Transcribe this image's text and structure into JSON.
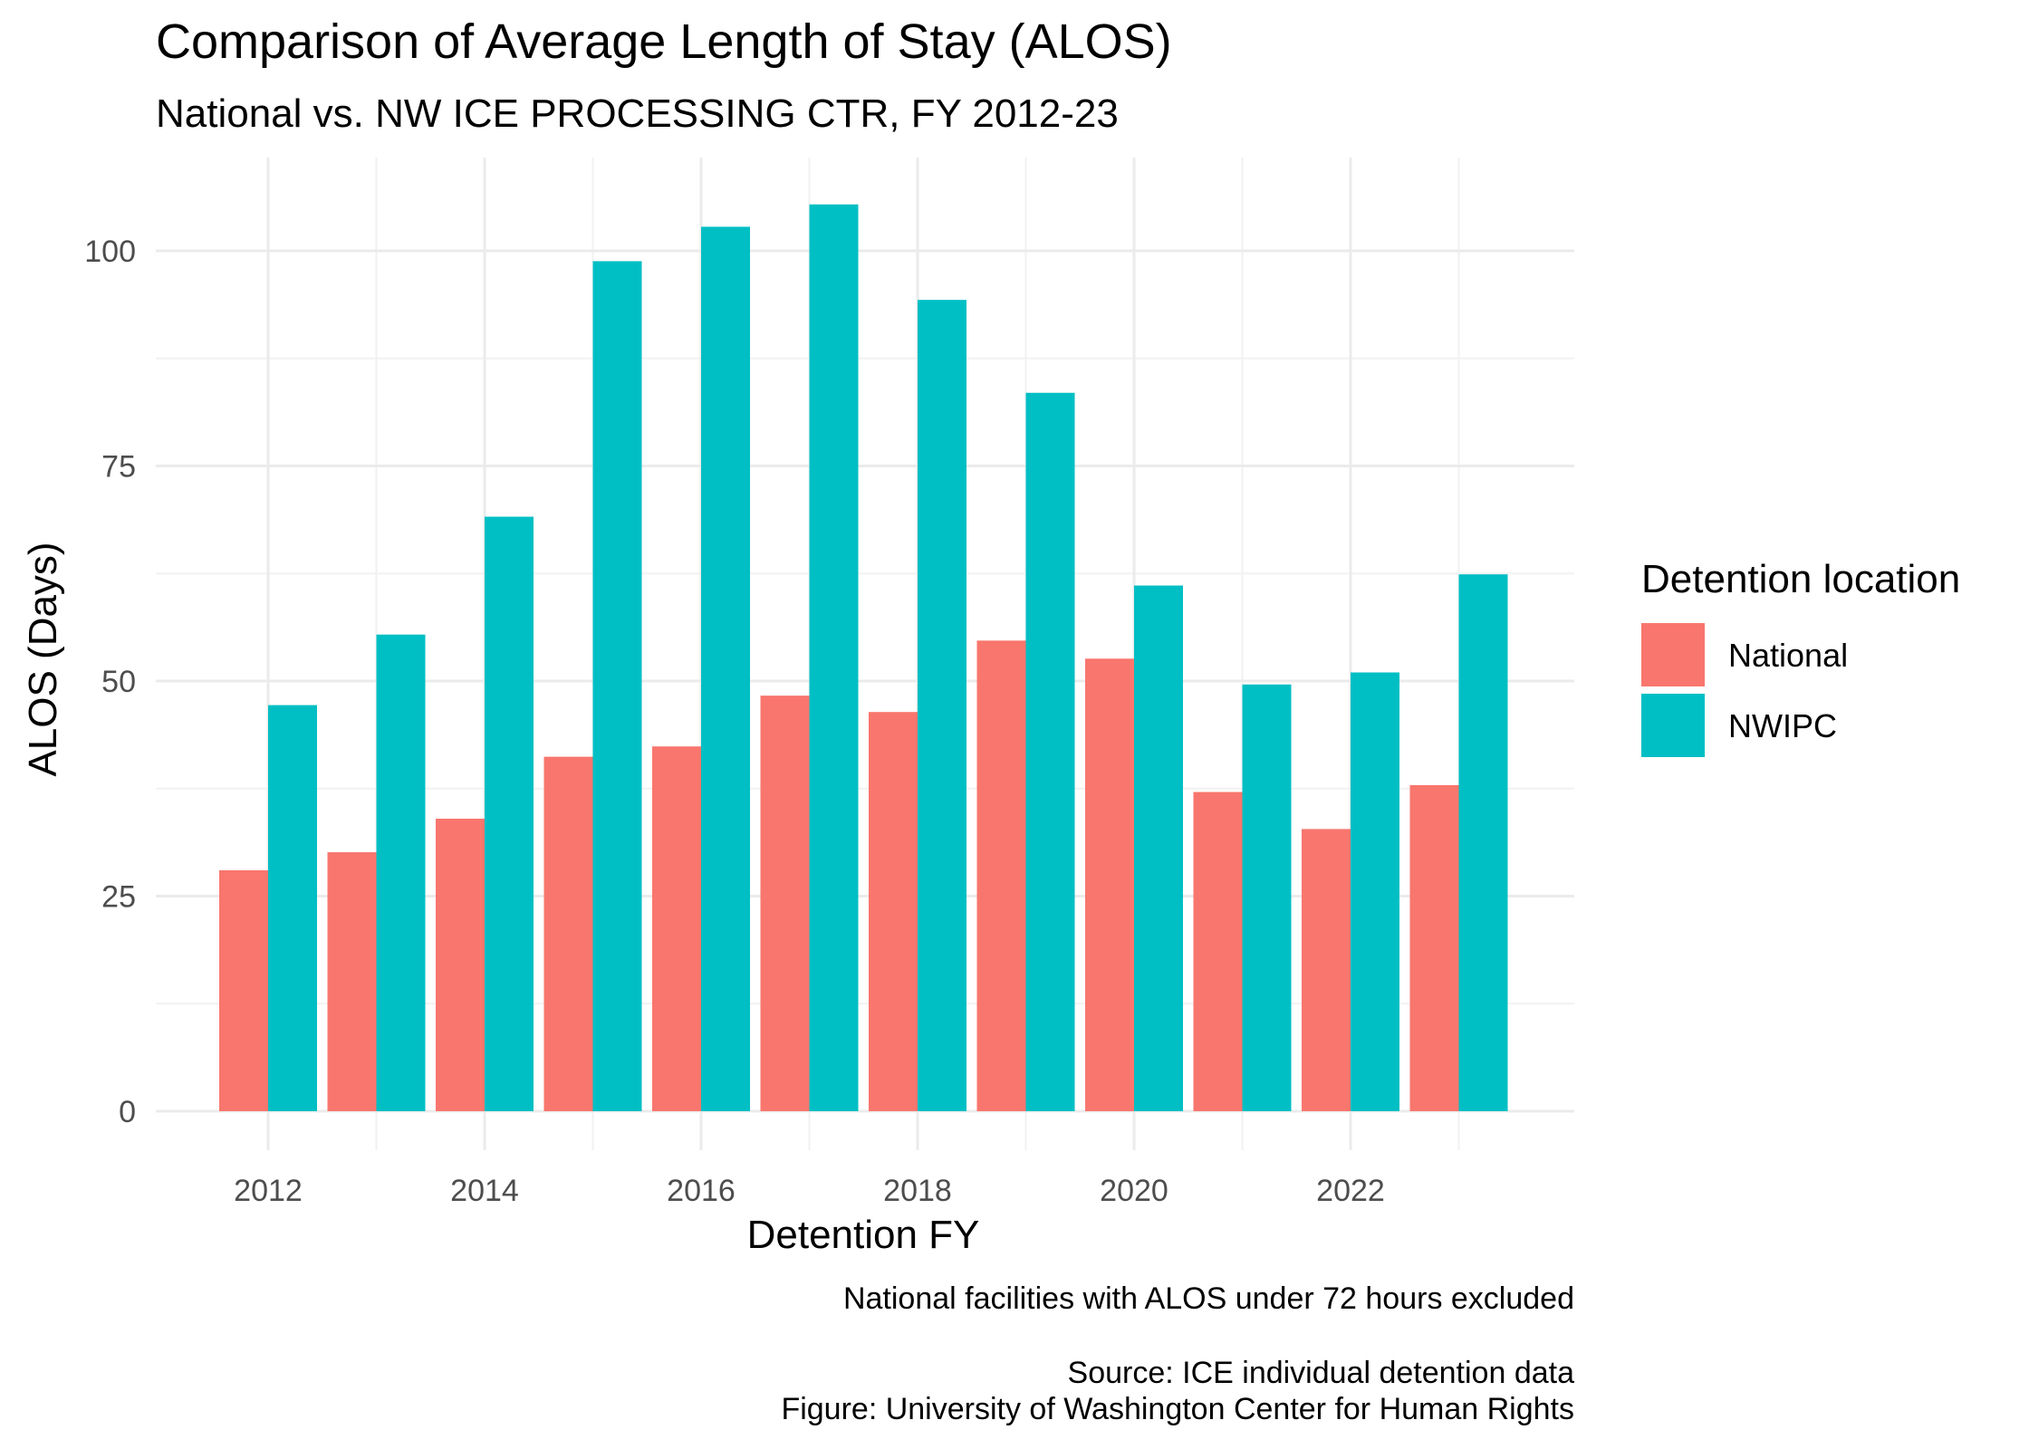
{
  "chart_data": {
    "type": "bar",
    "title": "Comparison of Average Length of Stay (ALOS)",
    "subtitle": "National vs. NW ICE PROCESSING CTR, FY 2012-23",
    "xlabel": "Detention FY",
    "ylabel": "ALOS (Days)",
    "categories": [
      2012,
      2013,
      2014,
      2015,
      2016,
      2017,
      2018,
      2019,
      2020,
      2021,
      2022,
      2023
    ],
    "x_ticks": [
      "2012",
      "2014",
      "2016",
      "2018",
      "2020",
      "2022"
    ],
    "y_ticks": [
      "0",
      "25",
      "50",
      "75",
      "100"
    ],
    "ylim": [
      0,
      110
    ],
    "xlim": [
      2011,
      2024
    ],
    "grid": true,
    "series": [
      {
        "name": "National",
        "color": "#F8766D",
        "values": [
          28.0,
          30.1,
          34.0,
          41.2,
          42.4,
          48.3,
          46.4,
          54.7,
          52.6,
          37.1,
          32.8,
          37.9
        ]
      },
      {
        "name": "NWIPC",
        "color": "#00BFC4",
        "values": [
          47.2,
          55.4,
          69.1,
          98.8,
          102.8,
          105.4,
          94.3,
          83.5,
          61.1,
          49.6,
          51.0,
          62.4
        ]
      }
    ],
    "legend": {
      "title": "Detention location",
      "position": "right"
    },
    "caption": [
      "National facilities with ALOS under 72 hours excluded",
      "",
      "Source: ICE individual detention data",
      "Figure: University of Washington Center for Human Rights"
    ]
  }
}
